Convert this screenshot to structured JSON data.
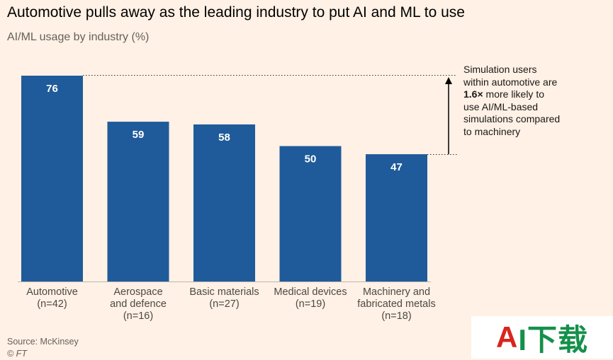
{
  "title": "Automotive pulls away as the leading industry to put AI and ML to use",
  "subtitle": "AI/ML usage by industry (%)",
  "chart_data": {
    "type": "bar",
    "categories": [
      [
        "Automotive",
        "(n=42)"
      ],
      [
        "Aerospace",
        "and defence",
        "(n=16)"
      ],
      [
        "Basic materials",
        "(n=27)"
      ],
      [
        "Medical devices",
        "(n=19)"
      ],
      [
        "Machinery and",
        "fabricated metals",
        "(n=18)"
      ]
    ],
    "values": [
      76,
      59,
      58,
      50,
      47
    ],
    "ylim": [
      0,
      76
    ],
    "bar_color": "#1f5b9a",
    "label_color": "#ffffff",
    "annotation": {
      "from_value": 47,
      "to_value": 76,
      "text_before": "Simulation users within automotive are ",
      "text_bold": "1.6×",
      "text_after": " more likely to use AI/ML-based simulations compared to machinery"
    }
  },
  "source": "Source: McKinsey",
  "copyright": "© FT",
  "watermark": {
    "part1": "A",
    "part2": "I下载"
  }
}
